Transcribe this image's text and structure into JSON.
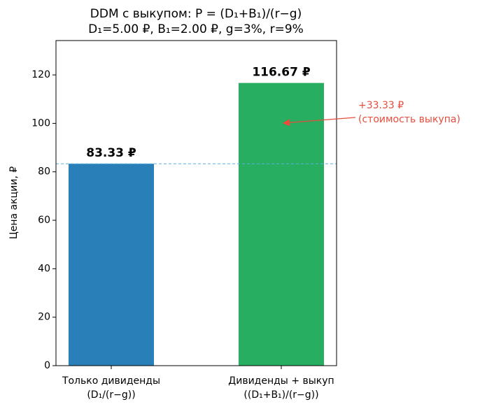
{
  "chart_data": {
    "type": "bar",
    "title": "DDM с выкупом: P = (D₁+B₁)/(r−g)",
    "subtitle": "D₁=5.00 ₽, B₁=2.00 ₽, g=3%, r=9%",
    "ylabel": "Цена акции, ₽",
    "categories": [
      "Только дивиденды\n(D₁/(r−g))",
      "Дивиденды + выкуп\n((D₁+B₁)/(r−g))"
    ],
    "values": [
      83.33,
      116.67
    ],
    "value_labels": [
      "83.33 ₽",
      "116.67 ₽"
    ],
    "colors": [
      "#2980b9",
      "#27ae60"
    ],
    "reference_line": 83.33,
    "annotation": "+33.33 ₽\n(стоимость выкупа)",
    "ylim": [
      0,
      134.17
    ],
    "yticks": [
      0,
      20,
      40,
      60,
      80,
      100,
      120
    ]
  }
}
